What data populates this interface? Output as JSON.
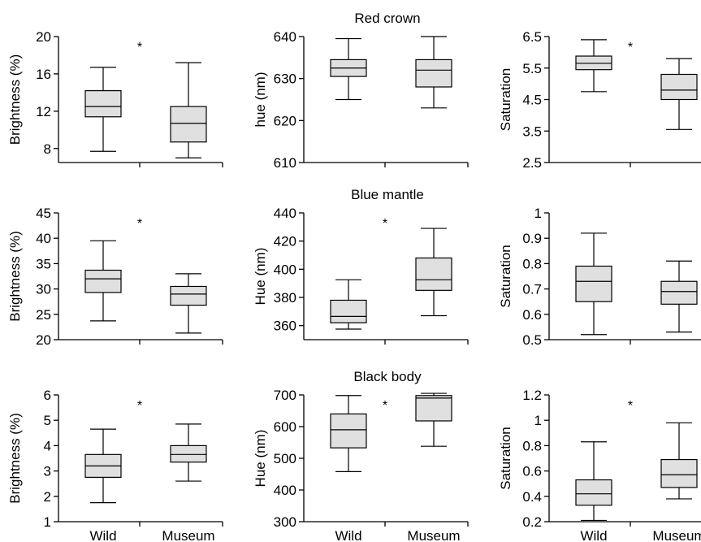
{
  "chart_data": [
    {
      "type": "boxplot",
      "row_title": "Red crown",
      "ylabel": "Brightness (%)",
      "ylim": [
        6.5,
        20
      ],
      "yticks": [
        8,
        12,
        16,
        20
      ],
      "categories": [
        "Wild",
        "Museum"
      ],
      "boxes": [
        {
          "whisker_low": 7.7,
          "q1": 11.4,
          "median": 12.5,
          "q3": 14.2,
          "whisker_high": 16.7
        },
        {
          "whisker_low": 7.0,
          "q1": 8.7,
          "median": 10.7,
          "q3": 12.5,
          "whisker_high": 17.2
        }
      ],
      "annotation": "*"
    },
    {
      "type": "boxplot",
      "row_title": "Red crown",
      "ylabel": "hue (nm)",
      "ylim": [
        610,
        640
      ],
      "yticks": [
        610,
        620,
        630,
        640
      ],
      "categories": [
        "Wild",
        "Museum"
      ],
      "boxes": [
        {
          "whisker_low": 625,
          "q1": 630.5,
          "median": 632.5,
          "q3": 634.5,
          "whisker_high": 639.5
        },
        {
          "whisker_low": 623,
          "q1": 628,
          "median": 632,
          "q3": 634.5,
          "whisker_high": 640
        }
      ],
      "annotation": ""
    },
    {
      "type": "boxplot",
      "row_title": "Red crown",
      "ylabel": "Saturation",
      "ylim": [
        2.5,
        6.5
      ],
      "yticks": [
        2.5,
        3.5,
        4.5,
        5.5,
        6.5
      ],
      "categories": [
        "Wild",
        "Museum"
      ],
      "boxes": [
        {
          "whisker_low": 4.75,
          "q1": 5.45,
          "median": 5.65,
          "q3": 5.88,
          "whisker_high": 6.4
        },
        {
          "whisker_low": 3.55,
          "q1": 4.5,
          "median": 4.8,
          "q3": 5.3,
          "whisker_high": 5.8
        }
      ],
      "annotation": "*"
    },
    {
      "type": "boxplot",
      "row_title": "Blue mantle",
      "ylabel": "Brightness (%)",
      "ylim": [
        20,
        45
      ],
      "yticks": [
        20,
        25,
        30,
        35,
        40,
        45
      ],
      "categories": [
        "Wild",
        "Museum"
      ],
      "boxes": [
        {
          "whisker_low": 23.7,
          "q1": 29.3,
          "median": 32.0,
          "q3": 33.7,
          "whisker_high": 39.5
        },
        {
          "whisker_low": 21.3,
          "q1": 26.8,
          "median": 29.0,
          "q3": 30.5,
          "whisker_high": 33.0
        }
      ],
      "annotation": "*"
    },
    {
      "type": "boxplot",
      "row_title": "Blue mantle",
      "ylabel": "Hue (nm)",
      "ylim": [
        350,
        440
      ],
      "yticks": [
        360,
        380,
        400,
        420,
        440
      ],
      "categories": [
        "Wild",
        "Museum"
      ],
      "boxes": [
        {
          "whisker_low": 357.5,
          "q1": 362,
          "median": 366.5,
          "q3": 378,
          "whisker_high": 392.5
        },
        {
          "whisker_low": 367,
          "q1": 385,
          "median": 392.5,
          "q3": 408,
          "whisker_high": 429
        }
      ],
      "annotation": "*"
    },
    {
      "type": "boxplot",
      "row_title": "Blue mantle",
      "ylabel": "Saturation",
      "ylim": [
        0.5,
        1.0
      ],
      "yticks": [
        0.5,
        0.6,
        0.7,
        0.8,
        0.9,
        1.0
      ],
      "categories": [
        "Wild",
        "Museum"
      ],
      "boxes": [
        {
          "whisker_low": 0.52,
          "q1": 0.65,
          "median": 0.73,
          "q3": 0.79,
          "whisker_high": 0.92
        },
        {
          "whisker_low": 0.53,
          "q1": 0.64,
          "median": 0.69,
          "q3": 0.73,
          "whisker_high": 0.81
        }
      ],
      "annotation": ""
    },
    {
      "type": "boxplot",
      "row_title": "Black body",
      "ylabel": "Brightness (%)",
      "ylim": [
        1,
        6
      ],
      "yticks": [
        1,
        2,
        3,
        4,
        5,
        6
      ],
      "categories": [
        "Wild",
        "Museum"
      ],
      "boxes": [
        {
          "whisker_low": 1.75,
          "q1": 2.75,
          "median": 3.2,
          "q3": 3.65,
          "whisker_high": 4.65
        },
        {
          "whisker_low": 2.6,
          "q1": 3.35,
          "median": 3.65,
          "q3": 4.0,
          "whisker_high": 4.85
        }
      ],
      "annotation": "*"
    },
    {
      "type": "boxplot",
      "row_title": "Black body",
      "ylabel": "Hue (nm)",
      "ylim": [
        300,
        700
      ],
      "yticks": [
        300,
        400,
        500,
        600,
        700
      ],
      "categories": [
        "Wild",
        "Museum"
      ],
      "boxes": [
        {
          "whisker_low": 458,
          "q1": 533,
          "median": 590,
          "q3": 640,
          "whisker_high": 698
        },
        {
          "whisker_low": 538,
          "q1": 618,
          "median": 690,
          "q3": 698,
          "whisker_high": 705
        }
      ],
      "annotation": "*"
    },
    {
      "type": "boxplot",
      "row_title": "Black body",
      "ylabel": "Saturation",
      "ylim": [
        0.2,
        1.2
      ],
      "yticks": [
        0.2,
        0.4,
        0.6,
        0.8,
        1.0,
        1.2
      ],
      "categories": [
        "Wild",
        "Museum"
      ],
      "boxes": [
        {
          "whisker_low": 0.21,
          "q1": 0.33,
          "median": 0.42,
          "q3": 0.53,
          "whisker_high": 0.83
        },
        {
          "whisker_low": 0.38,
          "q1": 0.47,
          "median": 0.57,
          "q3": 0.69,
          "whisker_high": 0.98
        }
      ],
      "annotation": "*"
    }
  ],
  "style": {
    "box_fill": "#e0e0e0",
    "line_color": "#000000"
  }
}
